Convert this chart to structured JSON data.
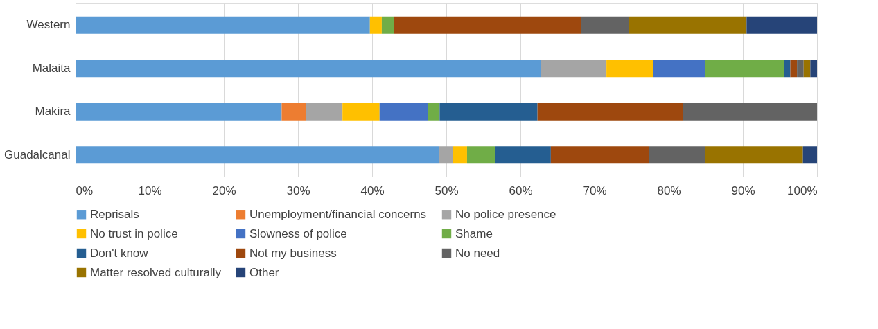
{
  "chart_data": {
    "type": "bar",
    "orientation": "horizontal",
    "stacked": true,
    "categories": [
      "Western",
      "Malaita",
      "Makira",
      "Guadalcanal"
    ],
    "xlim": [
      0,
      100
    ],
    "xticks": [
      {
        "value": 0,
        "label": "0%"
      },
      {
        "value": 10,
        "label": "10%"
      },
      {
        "value": 20,
        "label": "20%"
      },
      {
        "value": 30,
        "label": "30%"
      },
      {
        "value": 40,
        "label": "40%"
      },
      {
        "value": 50,
        "label": "50%"
      },
      {
        "value": 60,
        "label": "60%"
      },
      {
        "value": 70,
        "label": "70%"
      },
      {
        "value": 80,
        "label": "80%"
      },
      {
        "value": 90,
        "label": "90%"
      },
      {
        "value": 100,
        "label": "100%"
      }
    ],
    "grid": "x",
    "legend": "bottom",
    "series": [
      {
        "name": "Reprisals",
        "color": "#5b9bd5",
        "values": [
          39.7,
          62.8,
          27.8,
          49.0
        ]
      },
      {
        "name": "Unemployment/financial concerns",
        "color": "#ed7d31",
        "values": [
          0,
          0,
          3.3,
          0
        ]
      },
      {
        "name": "No police presence",
        "color": "#a5a5a5",
        "values": [
          0,
          8.8,
          4.9,
          1.9
        ]
      },
      {
        "name": "No trust in police",
        "color": "#ffc000",
        "values": [
          1.6,
          6.3,
          5.0,
          1.9
        ]
      },
      {
        "name": "Slowness of police",
        "color": "#4472c4",
        "values": [
          0,
          7.0,
          6.5,
          0
        ]
      },
      {
        "name": "Shame",
        "color": "#70ad47",
        "values": [
          1.6,
          10.7,
          1.6,
          3.8
        ]
      },
      {
        "name": "Don't know",
        "color": "#255e91",
        "values": [
          0,
          0.8,
          13.2,
          7.5
        ]
      },
      {
        "name": "Not my business",
        "color": "#9e480e",
        "values": [
          25.3,
          0.9,
          19.6,
          13.2
        ]
      },
      {
        "name": "No need",
        "color": "#636363",
        "values": [
          6.4,
          0.9,
          18.1,
          7.6
        ]
      },
      {
        "name": "Matter resolved culturally",
        "color": "#997300",
        "values": [
          15.9,
          0.9,
          0,
          13.2
        ]
      },
      {
        "name": "Other",
        "color": "#264478",
        "values": [
          9.5,
          0.9,
          0,
          1.9
        ]
      }
    ]
  }
}
